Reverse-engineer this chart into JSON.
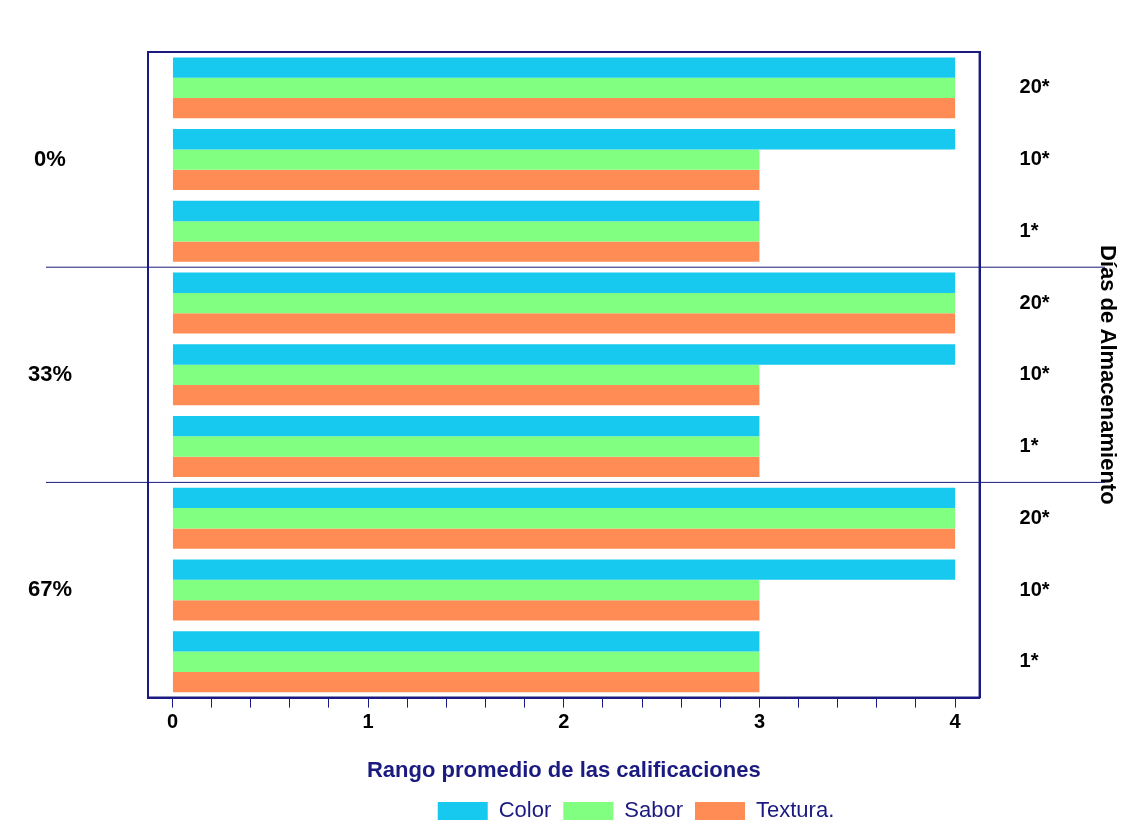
{
  "chart_data": {
    "type": "bar",
    "orientation": "horizontal",
    "xlabel": "Rango promedio de las calificaciones",
    "ylabel": "Días de Almacenamiento",
    "categories": [
      "20*",
      "10*",
      "1*",
      "20*",
      "10*",
      "1*",
      "20*",
      "10*",
      "1*"
    ],
    "series": [
      {
        "name": "Color",
        "color": "#17c9ee",
        "values": [
          4,
          4,
          3,
          4,
          4,
          3,
          4,
          4,
          3
        ]
      },
      {
        "name": "Sabor",
        "color": "#80ff80",
        "values": [
          4,
          3,
          3,
          4,
          3,
          3,
          4,
          3,
          3
        ]
      },
      {
        "name": "Textura.",
        "color": "#ff8c55",
        "values": [
          4,
          3,
          3,
          4,
          3,
          3,
          4,
          3,
          3
        ]
      }
    ],
    "xlim": [
      -0.125,
      4.125
    ],
    "xticks": [
      0,
      {
        "value": 0.2,
        "label": null
      },
      {
        "value": 0.4,
        "label": null
      },
      {
        "value": 0.6,
        "label": null
      },
      {
        "value": 0.8,
        "label": null
      },
      1,
      {
        "value": 1.2,
        "label": null
      },
      {
        "value": 1.4,
        "label": null
      },
      {
        "value": 1.6,
        "label": null
      },
      {
        "value": 1.8,
        "label": null
      },
      2,
      {
        "value": 2.2,
        "label": null
      },
      {
        "value": 2.4,
        "label": null
      },
      {
        "value": 2.6,
        "label": null
      },
      {
        "value": 2.8,
        "label": null
      },
      3,
      {
        "value": 3.2,
        "label": null
      },
      {
        "value": 3.4,
        "label": null
      },
      {
        "value": 3.6,
        "label": null
      },
      {
        "value": 3.8,
        "label": null
      },
      4
    ],
    "annotations": [
      "0%",
      "33%",
      "67%"
    ],
    "grid": false,
    "legend": "bottom"
  }
}
